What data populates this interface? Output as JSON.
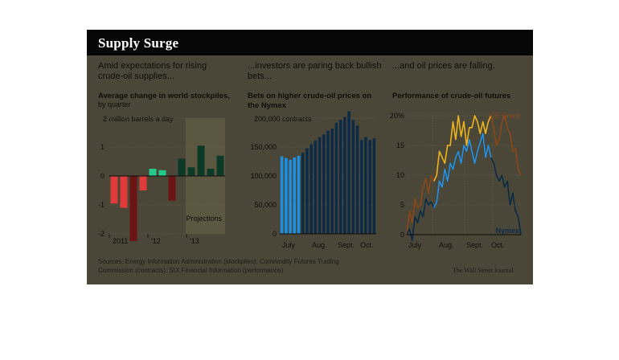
{
  "title": "Supply Surge",
  "panels": {
    "p1": {
      "caption": "Amid expectations for rising crude-oil supplies...",
      "subtitle": "Average change in world stockpiles,",
      "subtitle2": "by quarter",
      "unit_note": "2 million barrels a day",
      "projection_label": "Projections"
    },
    "p2": {
      "caption": "...investors are paring back bullish bets...",
      "subtitle": "Bets on higher crude-oil prices on the Nymex",
      "unit_note": "200,000 contracts"
    },
    "p3": {
      "caption": "...and oil prices are falling.",
      "subtitle": "Performance of crude-oil futures"
    }
  },
  "sources": "Sources: Energy Information Administration (stockpiles); Commodity Futures Trading Commission (contracts); SIX Financial Information (performance)",
  "credit": "The Wall Street Journal",
  "colors": {
    "background": "#4a4739",
    "titlebar": "#060606",
    "negative": "#6b1414",
    "negative_highlight": "#e03a3a",
    "positive": "#0c3a27",
    "positive_highlight": "#25c98c",
    "contracts": "#0d2a47",
    "contracts_highlight": "#1e8fe0",
    "brent": "#8a4618",
    "brent_highlight": "#e8b320",
    "nymex": "#0b2a44",
    "nymex_highlight": "#2493e8",
    "projection_band": "#5b5741"
  },
  "chart_data": [
    {
      "type": "bar",
      "title": "Average change in world stockpiles, by quarter",
      "ylabel": "2 million barrels a day",
      "ylim": [
        -2,
        2
      ],
      "yticks": [
        "2",
        "1",
        "0",
        "-1",
        "-2"
      ],
      "categories": [
        "2011 Q1",
        "2011 Q2",
        "2011 Q3",
        "2011 Q4",
        "'12 Q1",
        "'12 Q2",
        "'12 Q3",
        "'12 Q4",
        "'13 Q1",
        "'13 Q2",
        "'13 Q3",
        "'13 Q4"
      ],
      "xtick_labels": [
        "2011",
        "'12",
        "'13"
      ],
      "values": [
        -0.95,
        -1.1,
        -2.25,
        -0.5,
        0.25,
        0.2,
        -0.85,
        0.6,
        0.3,
        1.05,
        0.25,
        0.7
      ],
      "projections_start": "'13 Q1"
    },
    {
      "type": "bar",
      "title": "Bets on higher crude-oil prices on the Nymex",
      "ylabel": "200,000 contracts",
      "ylim": [
        0,
        200000
      ],
      "yticks": [
        "200,000",
        "150,000",
        "100,000",
        "50,000",
        "0"
      ],
      "xtick_labels": [
        "July",
        "Aug.",
        "Sept.",
        "Oct."
      ],
      "values": [
        134000,
        131000,
        128000,
        132000,
        135000,
        140000,
        148000,
        155000,
        161000,
        167000,
        172000,
        178000,
        182000,
        192000,
        197000,
        202000,
        212000,
        197000,
        187000,
        162000,
        167000,
        162000,
        165000
      ]
    },
    {
      "type": "line",
      "title": "Performance of crude-oil futures",
      "ylim": [
        0,
        20
      ],
      "yticks": [
        "20%",
        "15",
        "10",
        "5",
        "0"
      ],
      "xtick_labels": [
        "July",
        "Aug.",
        "Sept.",
        "Oct."
      ],
      "series": [
        {
          "name": "ICE Brent",
          "values": [
            0,
            4,
            2,
            6,
            4.5,
            5,
            8,
            9.5,
            7,
            10,
            9,
            10,
            14,
            13,
            12,
            15,
            15,
            19,
            16,
            20,
            16.5,
            19,
            15,
            18,
            18,
            20,
            19,
            17,
            19,
            17,
            19,
            20,
            18,
            15,
            16,
            19,
            20,
            18,
            17,
            14,
            14.5,
            11,
            10
          ]
        },
        {
          "name": "Nymex",
          "values": [
            0,
            1,
            -1,
            3,
            2,
            4,
            3,
            6,
            5,
            5.5,
            4.5,
            5.5,
            9,
            8,
            11,
            9,
            12,
            11,
            13,
            14,
            12,
            15,
            14,
            16,
            14,
            12,
            14,
            15.5,
            17,
            13,
            15,
            13,
            12,
            10,
            9,
            10,
            8,
            9,
            5,
            7,
            4,
            3,
            0
          ]
        }
      ]
    }
  ]
}
